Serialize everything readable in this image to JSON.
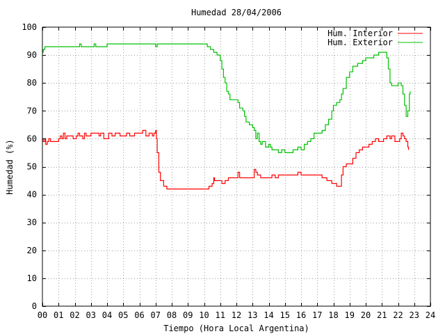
{
  "chart_data": {
    "type": "line",
    "title": "Humedad 28/04/2006",
    "xlabel": "Tiempo (Hora Local Argentina)",
    "ylabel": "Humedad (%)",
    "xlim": [
      0,
      24
    ],
    "ylim": [
      0,
      100
    ],
    "grid": true,
    "legend_position": "top-right",
    "x_ticks": [
      "00",
      "01",
      "02",
      "03",
      "04",
      "05",
      "06",
      "07",
      "08",
      "09",
      "10",
      "11",
      "12",
      "13",
      "14",
      "15",
      "16",
      "17",
      "18",
      "19",
      "20",
      "21",
      "22",
      "23",
      "24"
    ],
    "y_ticks": [
      "0",
      "10",
      "20",
      "30",
      "40",
      "50",
      "60",
      "70",
      "80",
      "90",
      "100"
    ],
    "series": [
      {
        "name": "Hum. Interior",
        "color": "#ff0000",
        "points": [
          [
            0.0,
            60
          ],
          [
            0.05,
            59
          ],
          [
            0.15,
            60
          ],
          [
            0.2,
            58
          ],
          [
            0.3,
            59
          ],
          [
            0.4,
            60
          ],
          [
            0.5,
            59
          ],
          [
            0.6,
            59
          ],
          [
            0.8,
            59
          ],
          [
            1.0,
            60
          ],
          [
            1.1,
            61
          ],
          [
            1.2,
            60
          ],
          [
            1.3,
            62
          ],
          [
            1.4,
            60
          ],
          [
            1.5,
            61
          ],
          [
            1.7,
            61
          ],
          [
            1.9,
            60
          ],
          [
            2.0,
            60
          ],
          [
            2.1,
            61
          ],
          [
            2.2,
            62
          ],
          [
            2.3,
            61
          ],
          [
            2.5,
            60
          ],
          [
            2.6,
            62
          ],
          [
            2.7,
            61
          ],
          [
            2.9,
            61
          ],
          [
            3.0,
            62
          ],
          [
            3.2,
            62
          ],
          [
            3.5,
            61
          ],
          [
            3.6,
            62
          ],
          [
            3.8,
            60
          ],
          [
            4.0,
            60
          ],
          [
            4.1,
            62
          ],
          [
            4.3,
            61
          ],
          [
            4.5,
            62
          ],
          [
            4.8,
            61
          ],
          [
            5.0,
            61
          ],
          [
            5.2,
            62
          ],
          [
            5.4,
            61
          ],
          [
            5.7,
            62
          ],
          [
            6.0,
            62
          ],
          [
            6.2,
            63
          ],
          [
            6.4,
            61
          ],
          [
            6.6,
            62
          ],
          [
            6.8,
            61
          ],
          [
            6.9,
            62
          ],
          [
            7.0,
            63
          ],
          [
            7.05,
            60
          ],
          [
            7.1,
            55
          ],
          [
            7.2,
            48
          ],
          [
            7.3,
            45
          ],
          [
            7.5,
            43
          ],
          [
            7.7,
            42
          ],
          [
            8.0,
            42
          ],
          [
            9.0,
            42
          ],
          [
            10.0,
            42
          ],
          [
            10.2,
            42
          ],
          [
            10.3,
            43
          ],
          [
            10.5,
            44
          ],
          [
            10.6,
            46
          ],
          [
            10.65,
            45
          ],
          [
            11.0,
            45
          ],
          [
            11.1,
            44
          ],
          [
            11.3,
            45
          ],
          [
            11.5,
            46
          ],
          [
            11.8,
            46
          ],
          [
            12.0,
            46
          ],
          [
            12.1,
            48
          ],
          [
            12.2,
            46
          ],
          [
            12.5,
            46
          ],
          [
            12.8,
            46
          ],
          [
            13.0,
            46
          ],
          [
            13.1,
            49
          ],
          [
            13.2,
            48
          ],
          [
            13.3,
            47
          ],
          [
            13.5,
            46
          ],
          [
            13.8,
            46
          ],
          [
            14.0,
            46
          ],
          [
            14.2,
            47
          ],
          [
            14.4,
            46
          ],
          [
            14.6,
            47
          ],
          [
            14.8,
            47
          ],
          [
            15.0,
            47
          ],
          [
            15.5,
            47
          ],
          [
            15.8,
            48
          ],
          [
            16.0,
            47
          ],
          [
            16.5,
            47
          ],
          [
            17.0,
            47
          ],
          [
            17.3,
            46
          ],
          [
            17.6,
            45
          ],
          [
            17.9,
            44
          ],
          [
            18.1,
            44
          ],
          [
            18.2,
            43
          ],
          [
            18.4,
            43
          ],
          [
            18.5,
            47
          ],
          [
            18.6,
            50
          ],
          [
            18.8,
            51
          ],
          [
            19.0,
            51
          ],
          [
            19.2,
            53
          ],
          [
            19.4,
            55
          ],
          [
            19.6,
            56
          ],
          [
            19.8,
            57
          ],
          [
            20.0,
            57
          ],
          [
            20.2,
            58
          ],
          [
            20.4,
            59
          ],
          [
            20.6,
            60
          ],
          [
            20.8,
            59
          ],
          [
            21.0,
            59
          ],
          [
            21.1,
            60
          ],
          [
            21.3,
            61
          ],
          [
            21.5,
            60
          ],
          [
            21.6,
            61
          ],
          [
            21.8,
            59
          ],
          [
            22.0,
            59
          ],
          [
            22.1,
            60
          ],
          [
            22.2,
            62
          ],
          [
            22.3,
            61
          ],
          [
            22.4,
            60
          ],
          [
            22.5,
            59
          ],
          [
            22.6,
            57
          ],
          [
            22.65,
            56
          ]
        ]
      },
      {
        "name": "Hum. Exterior",
        "color": "#00c000",
        "points": [
          [
            0.0,
            91
          ],
          [
            0.05,
            92
          ],
          [
            0.15,
            93
          ],
          [
            0.5,
            93
          ],
          [
            1.0,
            93
          ],
          [
            1.5,
            93
          ],
          [
            2.0,
            93
          ],
          [
            2.3,
            94
          ],
          [
            2.4,
            93
          ],
          [
            3.0,
            93
          ],
          [
            3.2,
            94
          ],
          [
            3.3,
            93
          ],
          [
            3.8,
            93
          ],
          [
            4.0,
            94
          ],
          [
            4.5,
            94
          ],
          [
            5.0,
            94
          ],
          [
            5.5,
            94
          ],
          [
            6.0,
            94
          ],
          [
            6.5,
            94
          ],
          [
            6.9,
            94
          ],
          [
            7.0,
            93
          ],
          [
            7.1,
            94
          ],
          [
            8.0,
            94
          ],
          [
            9.0,
            94
          ],
          [
            10.0,
            94
          ],
          [
            10.2,
            93
          ],
          [
            10.4,
            92
          ],
          [
            10.6,
            91
          ],
          [
            10.8,
            90
          ],
          [
            11.0,
            88
          ],
          [
            11.1,
            85
          ],
          [
            11.2,
            82
          ],
          [
            11.3,
            80
          ],
          [
            11.4,
            77
          ],
          [
            11.5,
            76
          ],
          [
            11.6,
            74
          ],
          [
            12.0,
            74
          ],
          [
            12.1,
            73
          ],
          [
            12.2,
            71
          ],
          [
            12.4,
            70
          ],
          [
            12.5,
            68
          ],
          [
            12.6,
            66
          ],
          [
            12.8,
            65
          ],
          [
            13.0,
            64
          ],
          [
            13.1,
            63
          ],
          [
            13.2,
            60
          ],
          [
            13.3,
            62
          ],
          [
            13.4,
            59
          ],
          [
            13.5,
            58
          ],
          [
            13.6,
            59
          ],
          [
            13.8,
            57
          ],
          [
            14.0,
            58
          ],
          [
            14.1,
            57
          ],
          [
            14.2,
            56
          ],
          [
            14.4,
            56
          ],
          [
            14.6,
            55
          ],
          [
            14.8,
            56
          ],
          [
            15.0,
            55
          ],
          [
            15.2,
            55
          ],
          [
            15.5,
            56
          ],
          [
            15.8,
            57
          ],
          [
            16.0,
            56
          ],
          [
            16.2,
            58
          ],
          [
            16.4,
            59
          ],
          [
            16.6,
            60
          ],
          [
            16.8,
            62
          ],
          [
            17.0,
            62
          ],
          [
            17.3,
            63
          ],
          [
            17.5,
            65
          ],
          [
            17.7,
            67
          ],
          [
            17.9,
            70
          ],
          [
            18.0,
            72
          ],
          [
            18.2,
            73
          ],
          [
            18.4,
            74
          ],
          [
            18.5,
            76
          ],
          [
            18.6,
            78
          ],
          [
            18.8,
            82
          ],
          [
            19.0,
            84
          ],
          [
            19.2,
            86
          ],
          [
            19.5,
            87
          ],
          [
            19.8,
            88
          ],
          [
            20.0,
            89
          ],
          [
            20.2,
            89
          ],
          [
            20.5,
            90
          ],
          [
            20.8,
            91
          ],
          [
            21.0,
            91
          ],
          [
            21.2,
            91
          ],
          [
            21.3,
            89
          ],
          [
            21.4,
            85
          ],
          [
            21.5,
            80
          ],
          [
            21.6,
            79
          ],
          [
            21.8,
            79
          ],
          [
            22.0,
            80
          ],
          [
            22.2,
            79
          ],
          [
            22.3,
            76
          ],
          [
            22.4,
            72
          ],
          [
            22.5,
            68
          ],
          [
            22.6,
            70
          ],
          [
            22.7,
            76
          ],
          [
            22.75,
            77
          ]
        ]
      }
    ]
  }
}
